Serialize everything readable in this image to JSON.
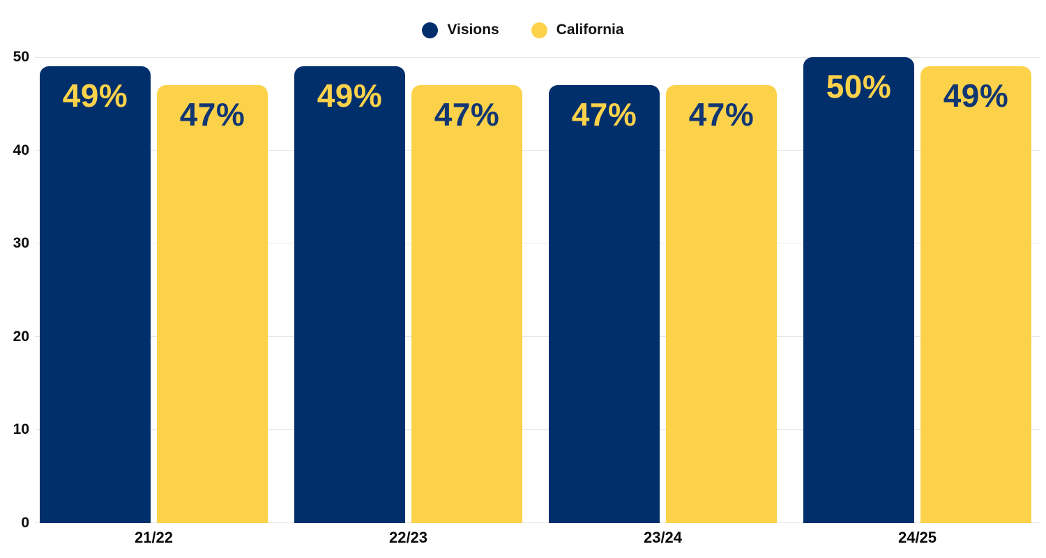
{
  "chart_data": {
    "type": "bar",
    "title": "",
    "categories": [
      "21/22",
      "22/23",
      "23/24",
      "24/25"
    ],
    "series": [
      {
        "name": "Visions",
        "color": "#002F6C",
        "label_color": "#FDD24B",
        "values": [
          49,
          49,
          47,
          50
        ]
      },
      {
        "name": "California",
        "color": "#FDD24B",
        "label_color": "#113672",
        "values": [
          47,
          47,
          47,
          49
        ]
      }
    ],
    "value_suffix": "%",
    "xlabel": "",
    "ylabel": "",
    "ylim": [
      0,
      50
    ],
    "yticks": [
      0,
      10,
      20,
      30,
      40,
      50
    ],
    "grid": true,
    "legend_position": "top-center",
    "background_color": "#ffffff",
    "gridline_color": "#e6e6e6",
    "axis_text_color": "#0a0a0a"
  },
  "legend": {
    "items": [
      {
        "label": "Visions",
        "dot_color": "#002F6C"
      },
      {
        "label": "California",
        "dot_color": "#FDD24B"
      }
    ]
  }
}
